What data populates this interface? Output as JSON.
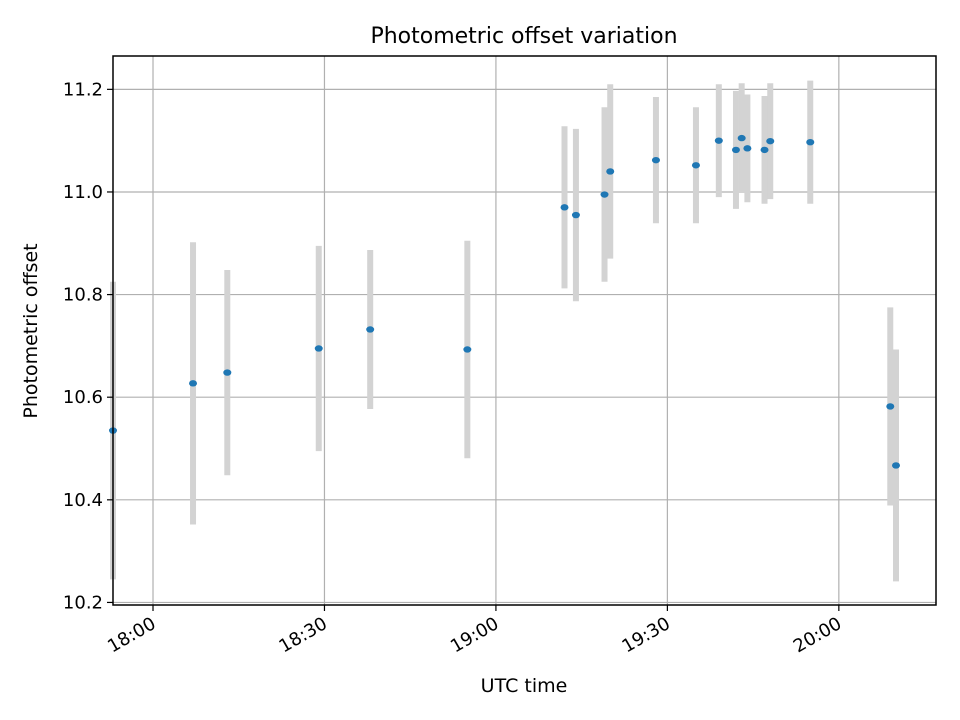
{
  "chart_data": {
    "type": "scatter",
    "title": "Photometric offset variation",
    "xlabel": "UTC time",
    "ylabel": "Photometric offset",
    "grid": true,
    "xlim": [
      "17:53",
      "20:17"
    ],
    "ylim": [
      10.195,
      11.265
    ],
    "xticks": [
      "18:00",
      "18:30",
      "19:00",
      "19:30",
      "20:00"
    ],
    "yticks": [
      10.2,
      10.4,
      10.6,
      10.8,
      11.0,
      11.2
    ],
    "point_color": "#1f77b4",
    "errorbar_color": "#d3d3d3",
    "points": [
      {
        "time": "17:53",
        "offset": 10.535,
        "err": 0.29
      },
      {
        "time": "18:07",
        "offset": 10.627,
        "err": 0.275
      },
      {
        "time": "18:13",
        "offset": 10.648,
        "err": 0.2
      },
      {
        "time": "18:29",
        "offset": 10.695,
        "err": 0.2
      },
      {
        "time": "18:38",
        "offset": 10.732,
        "err": 0.155
      },
      {
        "time": "18:55",
        "offset": 10.693,
        "err": 0.212
      },
      {
        "time": "19:12",
        "offset": 10.97,
        "err": 0.158
      },
      {
        "time": "19:14",
        "offset": 10.955,
        "err": 0.168
      },
      {
        "time": "19:19",
        "offset": 10.995,
        "err": 0.17
      },
      {
        "time": "19:20",
        "offset": 11.04,
        "err": 0.17
      },
      {
        "time": "19:28",
        "offset": 11.062,
        "err": 0.123
      },
      {
        "time": "19:35",
        "offset": 11.052,
        "err": 0.113
      },
      {
        "time": "19:39",
        "offset": 11.1,
        "err": 0.11
      },
      {
        "time": "19:42",
        "offset": 11.082,
        "err": 0.115
      },
      {
        "time": "19:43",
        "offset": 11.105,
        "err": 0.107
      },
      {
        "time": "19:44",
        "offset": 11.085,
        "err": 0.105
      },
      {
        "time": "19:47",
        "offset": 11.082,
        "err": 0.105
      },
      {
        "time": "19:48",
        "offset": 11.099,
        "err": 0.113
      },
      {
        "time": "19:55",
        "offset": 11.097,
        "err": 0.12
      },
      {
        "time": "20:09",
        "offset": 10.582,
        "err": 0.193
      },
      {
        "time": "20:10",
        "offset": 10.467,
        "err": 0.226
      }
    ]
  }
}
